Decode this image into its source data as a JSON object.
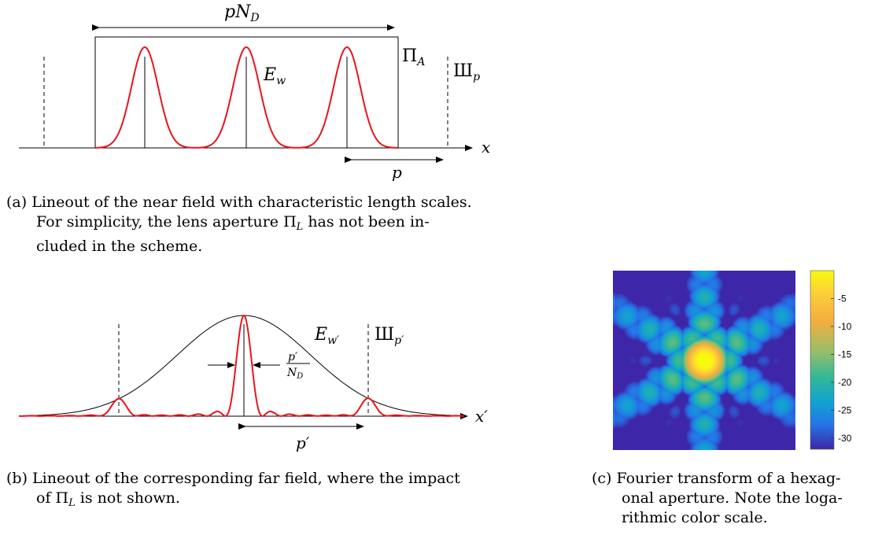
{
  "panel_a": {
    "label_top": "pN",
    "label_top_sub": "D",
    "label_field": "E",
    "label_field_sub": "w",
    "label_aperture": "Π",
    "label_aperture_sub": "A",
    "label_comb": "Ш",
    "label_comb_sub": "p",
    "label_axis": "x",
    "label_period": "p",
    "caption_tag": "(a)",
    "caption_lines": [
      "Lineout of the near field with characteristic length scales.",
      "For simplicity, the lens aperture Π",
      "cluded in the scheme."
    ],
    "caption_sub_L": "L",
    "caption_line2_tail": " has not been in-"
  },
  "panel_b": {
    "label_field": "E",
    "label_field_sub": "w′",
    "label_comb": "Ш",
    "label_comb_sub": "p′",
    "label_frac_num": "p′",
    "label_frac_den": "N",
    "label_frac_den_sub": "D",
    "label_axis": "x′",
    "label_period": "p′",
    "caption_tag": "(b)",
    "caption_line1": "Lineout of the corresponding far field, where the impact",
    "caption_line2_pre": "of Π",
    "caption_sub_L": "L",
    "caption_line2_post": " is not shown."
  },
  "panel_c": {
    "colorbar_ticks": [
      "-5",
      "-10",
      "-15",
      "-20",
      "-25",
      "-30"
    ],
    "colorbar_values": [
      -5,
      -10,
      -15,
      -20,
      -25,
      -30
    ],
    "colorbar_range": [
      -32,
      0
    ],
    "caption_tag": "(c)",
    "caption_lines": [
      "Fourier transform of a hexag-",
      "onal aperture. Note the loga-",
      "rithmic color scale."
    ]
  }
}
